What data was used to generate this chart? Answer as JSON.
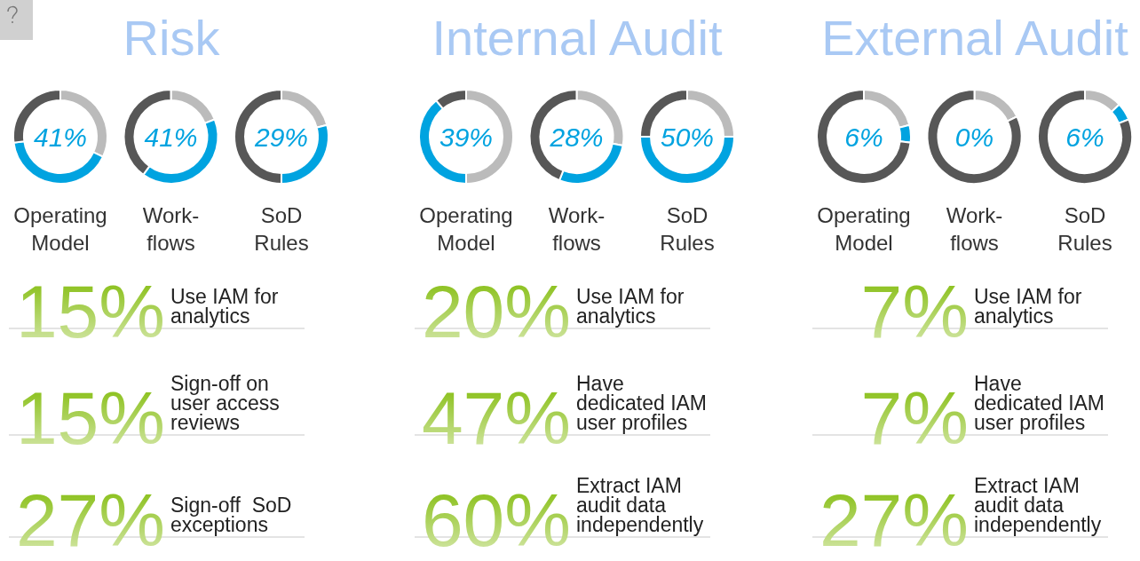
{
  "chart_data": [
    {
      "type": "other",
      "title": "Risk",
      "categories": [
        "Use IAM for\nanalytics",
        "Sign-off on\nuser access\nreviews",
        "Sign-off  SoD\nexceptions"
      ],
      "values": [
        15,
        15,
        27
      ],
      "value_labels": [
        "15%",
        "15%",
        "27%"
      ]
    },
    {
      "type": "donut",
      "title": "Operating\nModel",
      "categories": [
        null,
        null,
        null
      ],
      "values": [
        32,
        41,
        27
      ],
      "colors": [
        "#bbbbbb",
        "#00a3e0",
        "#575757"
      ],
      "annotations": [
        "41%"
      ]
    },
    {
      "type": "donut",
      "title": "Work-\nflows",
      "categories": [
        null,
        null,
        null
      ],
      "values": [
        19,
        41,
        40
      ],
      "colors": [
        "#bbbbbb",
        "#00a3e0",
        "#575757"
      ],
      "annotations": [
        "41%"
      ]
    },
    {
      "type": "donut",
      "title": "SoD\nRules",
      "categories": [
        null,
        null,
        null
      ],
      "values": [
        21,
        29,
        50
      ],
      "colors": [
        "#bbbbbb",
        "#00a3e0",
        "#575757"
      ],
      "annotations": [
        "29%"
      ]
    },
    {
      "type": "other",
      "title": "Internal Audit",
      "categories": [
        "Use IAM for\nanalytics",
        "Have\ndedicated IAM\nuser profiles",
        "Extract IAM\naudit data\nindependently"
      ],
      "values": [
        20,
        47,
        60
      ],
      "value_labels": [
        "20%",
        "47%",
        "60%"
      ]
    },
    {
      "type": "donut",
      "title": "Operating\nModel",
      "categories": [
        null,
        null,
        null
      ],
      "values": [
        50,
        39,
        11
      ],
      "colors": [
        "#bbbbbb",
        "#00a3e0",
        "#575757"
      ],
      "annotations": [
        "39%"
      ]
    },
    {
      "type": "donut",
      "title": "Work-\nflows",
      "categories": [
        null,
        null,
        null
      ],
      "values": [
        28,
        28,
        44
      ],
      "colors": [
        "#bbbbbb",
        "#00a3e0",
        "#575757"
      ],
      "annotations": [
        "28%"
      ]
    },
    {
      "type": "donut",
      "title": "SoD\nRules",
      "categories": [
        null,
        null,
        null
      ],
      "values": [
        25,
        50,
        25
      ],
      "colors": [
        "#bbbbbb",
        "#00a3e0",
        "#575757"
      ],
      "annotations": [
        "50%"
      ]
    },
    {
      "type": "other",
      "title": "External Audit",
      "categories": [
        "Use IAM for\nanalytics",
        "Have\ndedicated IAM\nuser profiles",
        "Extract IAM\naudit data\nindependently"
      ],
      "values": [
        7,
        7,
        27
      ],
      "value_labels": [
        "7%",
        "7%",
        "27%"
      ]
    },
    {
      "type": "donut",
      "title": "Operating\nModel",
      "categories": [
        null,
        null,
        null
      ],
      "values": [
        21,
        6,
        73
      ],
      "colors": [
        "#bbbbbb",
        "#00a3e0",
        "#575757"
      ],
      "annotations": [
        "6%"
      ]
    },
    {
      "type": "donut",
      "title": "Work-\nflows",
      "categories": [
        null,
        null,
        null
      ],
      "values": [
        18,
        0,
        82
      ],
      "colors": [
        "#bbbbbb",
        "#00a3e0",
        "#575757"
      ],
      "annotations": [
        "0%"
      ]
    },
    {
      "type": "donut",
      "title": "SoD\nRules",
      "categories": [
        null,
        null,
        null
      ],
      "values": [
        13,
        6,
        81
      ],
      "colors": [
        "#bbbbbb",
        "#00a3e0",
        "#575757"
      ],
      "annotations": [
        "6%"
      ]
    }
  ]
}
